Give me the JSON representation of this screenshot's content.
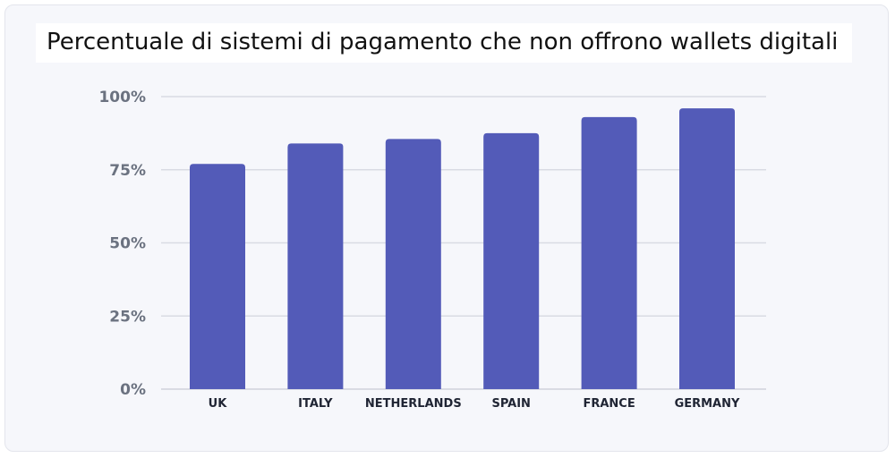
{
  "chart_data": {
    "type": "bar",
    "title": "Percentuale di sistemi di pagamento che non offrono wallets digitali",
    "categories": [
      "UK",
      "ITALY",
      "NETHERLANDS",
      "SPAIN",
      "FRANCE",
      "GERMANY"
    ],
    "values": [
      77,
      84,
      85.5,
      87.5,
      93,
      96
    ],
    "ylim": [
      0,
      100
    ],
    "yticks": [
      "0%",
      "25%",
      "50%",
      "75%",
      "100%"
    ],
    "ytick_values": [
      0,
      25,
      50,
      75,
      100
    ],
    "xlabel": "",
    "ylabel": "",
    "grid": true,
    "bar_color": "#535bb8",
    "grid_color": "#d9dbe3"
  }
}
